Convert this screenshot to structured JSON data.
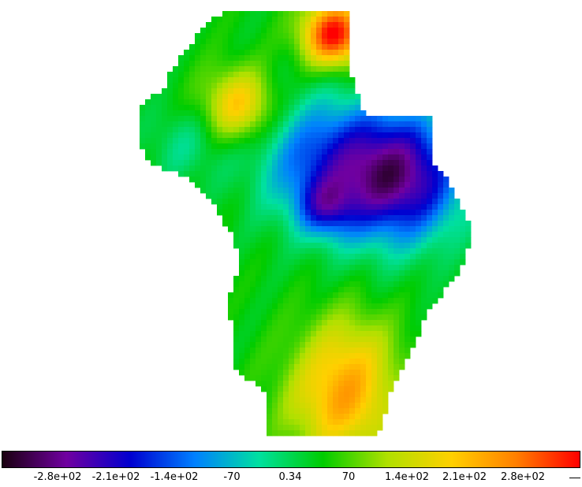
{
  "colorbar": {
    "stops": [
      "#1a0010",
      "#7000a0",
      "#0000d0",
      "#0080ff",
      "#00e0a0",
      "#00cc00",
      "#b0e000",
      "#ffd000",
      "#ff8000",
      "#ff0000"
    ],
    "tick_labels": [
      "-2.8e+02",
      "-2.1e+02",
      "-1.4e+02",
      "-70",
      "0.34",
      "70",
      "1.4e+02",
      "2.1e+02",
      "2.8e+02"
    ]
  }
}
